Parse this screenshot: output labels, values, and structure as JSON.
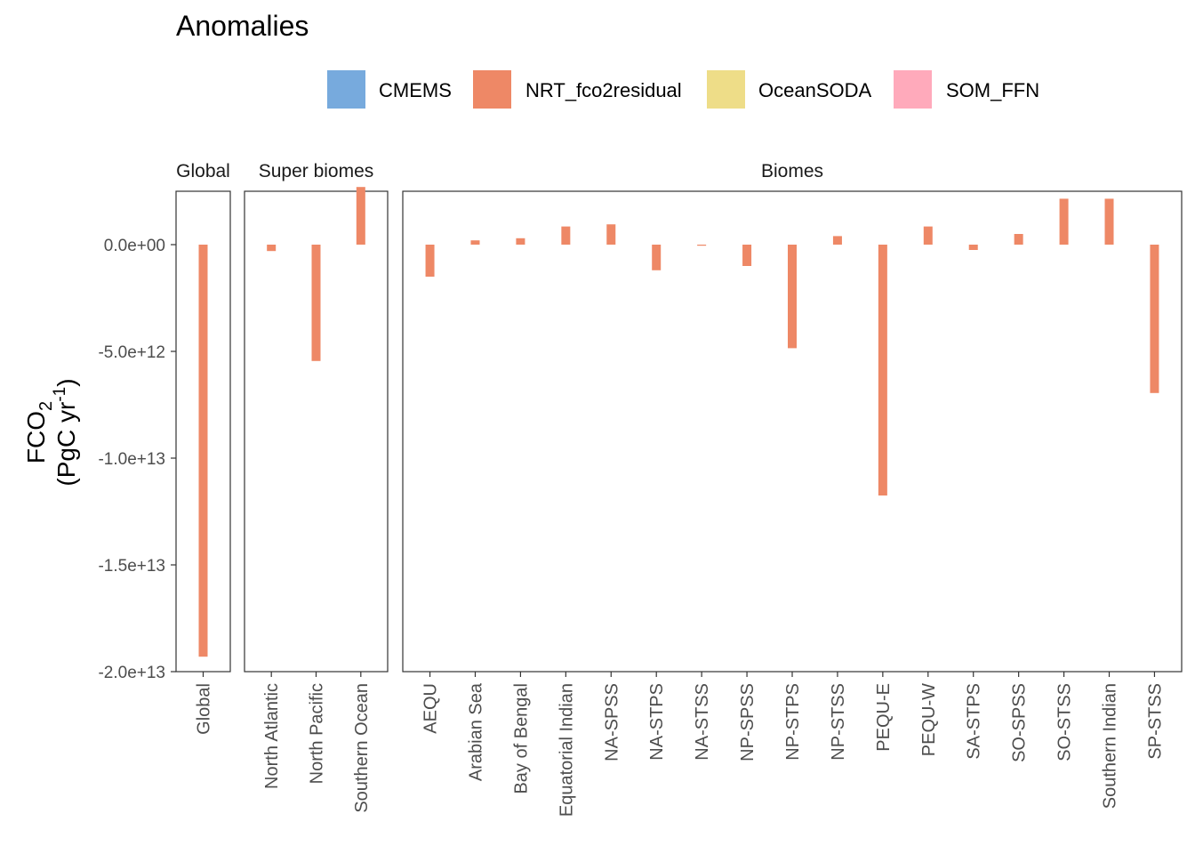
{
  "chart_data": {
    "type": "bar",
    "title": "Anomalies",
    "ylabel_line1": "FCO",
    "ylabel_line1_sub": "2",
    "ylabel_line2_pre": "(PgC yr",
    "ylabel_line2_sup": "-1",
    "ylabel_line2_post": ")",
    "ylim": [
      -20000000000000.0,
      2500000000000.0
    ],
    "yticks": [
      {
        "value": 0,
        "label": "0.0e+00"
      },
      {
        "value": -5000000000000.0,
        "label": "-5.0e+12"
      },
      {
        "value": -10000000000000.0,
        "label": "-1.0e+13"
      },
      {
        "value": -15000000000000.0,
        "label": "-1.5e+13"
      },
      {
        "value": -20000000000000.0,
        "label": "-2.0e+13"
      }
    ],
    "legend": [
      {
        "name": "CMEMS",
        "color": "#77AADD"
      },
      {
        "name": "NRT_fco2residual",
        "color": "#EE8866"
      },
      {
        "name": "OceanSODA",
        "color": "#EEDD88"
      },
      {
        "name": "SOM_FFN",
        "color": "#FFAABB"
      }
    ],
    "legend_placement": "top",
    "grid": false,
    "bar_color": "#EE8866",
    "panels": [
      {
        "name": "Global",
        "categories": [
          "Global"
        ],
        "values": [
          -19300000000000.0
        ]
      },
      {
        "name": "Super biomes",
        "categories": [
          "North Atlantic",
          "North Pacific",
          "Southern Ocean"
        ],
        "values": [
          -300000000000.0,
          -5450000000000.0,
          2700000000000.0
        ]
      },
      {
        "name": "Biomes",
        "categories": [
          "AEQU",
          "Arabian Sea",
          "Bay of Bengal",
          "Equatorial Indian",
          "NA-SPSS",
          "NA-STPS",
          "NA-STSS",
          "NP-SPSS",
          "NP-STPS",
          "NP-STSS",
          "PEQU-E",
          "PEQU-W",
          "SA-STPS",
          "SO-SPSS",
          "SO-STSS",
          "Southern Indian",
          "SP-STSS"
        ],
        "values": [
          -1500000000000.0,
          200000000000.0,
          300000000000.0,
          850000000000.0,
          950000000000.0,
          -1200000000000.0,
          -50000000000.0,
          -1000000000000.0,
          -4850000000000.0,
          400000000000.0,
          -11750000000000.0,
          850000000000.0,
          -250000000000.0,
          500000000000.0,
          2150000000000.0,
          2150000000000.0,
          -6950000000000.0
        ]
      }
    ]
  }
}
